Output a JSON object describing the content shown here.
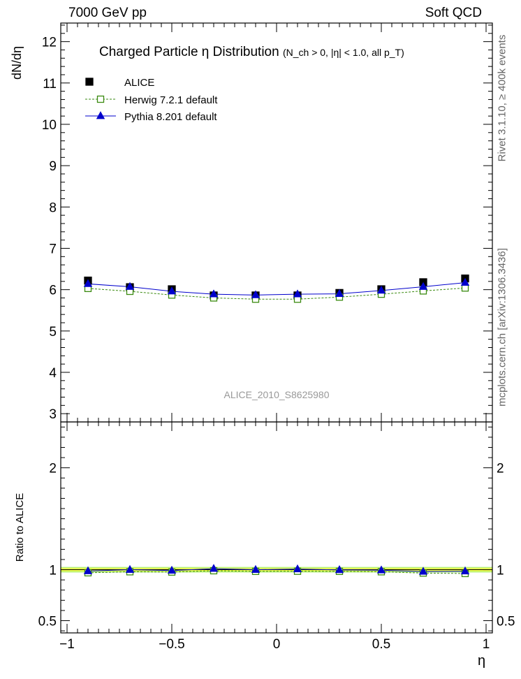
{
  "header": {
    "left": "7000 GeV pp",
    "right": "Soft QCD"
  },
  "side_labels": {
    "rivet": "Rivet 3.1.10, ≥ 400k events",
    "mcplots": "mcplots.cern.ch [arXiv:1306.3436]"
  },
  "watermark": "ALICE_2010_S8625980",
  "colors": {
    "alice": "#000000",
    "herwig": "#3a8a10",
    "pythia": "#0000cc",
    "band_inner": "#f3ff4a",
    "band_outer": "#b8f27a"
  },
  "chart_data": [
    {
      "type": "scatter",
      "panel": "main",
      "title": "Charged Particle  η Distribution",
      "subtitle": "(N_ch > 0, |η| < 1.0, all p_T)",
      "ylabel": "dN/dη",
      "xlabel": "",
      "xlim": [
        -1.03,
        1.03
      ],
      "ylim": [
        2.8,
        12.45
      ],
      "grid": false,
      "legend_position": "top-left",
      "yticks": [
        3,
        4,
        5,
        6,
        7,
        8,
        9,
        10,
        11,
        12
      ],
      "x": [
        -0.9,
        -0.7,
        -0.5,
        -0.3,
        -0.1,
        0.1,
        0.3,
        0.5,
        0.7,
        0.9
      ],
      "series": [
        {
          "name": "ALICE",
          "marker": "filled-square",
          "values": [
            6.22,
            6.06,
            6.01,
            5.86,
            5.86,
            5.86,
            5.92,
            6.01,
            6.18,
            6.27
          ]
        },
        {
          "name": "Herwig 7.2.1 default",
          "marker": "open-square",
          "line": "dashed",
          "values": [
            6.03,
            5.96,
            5.87,
            5.8,
            5.77,
            5.77,
            5.82,
            5.89,
            5.97,
            6.04
          ]
        },
        {
          "name": "Pythia 8.201 default",
          "marker": "filled-triangle",
          "line": "solid",
          "values": [
            6.14,
            6.07,
            5.96,
            5.89,
            5.87,
            5.89,
            5.9,
            5.98,
            6.07,
            6.17
          ]
        }
      ]
    },
    {
      "type": "scatter",
      "panel": "ratio",
      "ylabel": "Ratio to ALICE",
      "xlabel": "η",
      "xlim": [
        -1.03,
        1.03
      ],
      "ylim": [
        0.38,
        2.45
      ],
      "grid": false,
      "yticks": [
        0.5,
        1,
        2
      ],
      "xticks": [
        -1,
        -0.5,
        0,
        0.5,
        1
      ],
      "band": {
        "inner": [
          0.985,
          1.015
        ],
        "outer": [
          0.973,
          1.027
        ]
      },
      "x": [
        -0.9,
        -0.7,
        -0.5,
        -0.3,
        -0.1,
        0.1,
        0.3,
        0.5,
        0.7,
        0.9
      ],
      "series": [
        {
          "name": "Herwig 7.2.1 default",
          "values": [
            0.97,
            0.98,
            0.977,
            0.99,
            0.984,
            0.985,
            0.984,
            0.98,
            0.967,
            0.963
          ]
        },
        {
          "name": "Pythia 8.201 default",
          "values": [
            0.987,
            1.0,
            0.992,
            1.01,
            1.0,
            1.006,
            0.998,
            0.995,
            0.982,
            0.985
          ]
        }
      ]
    }
  ]
}
